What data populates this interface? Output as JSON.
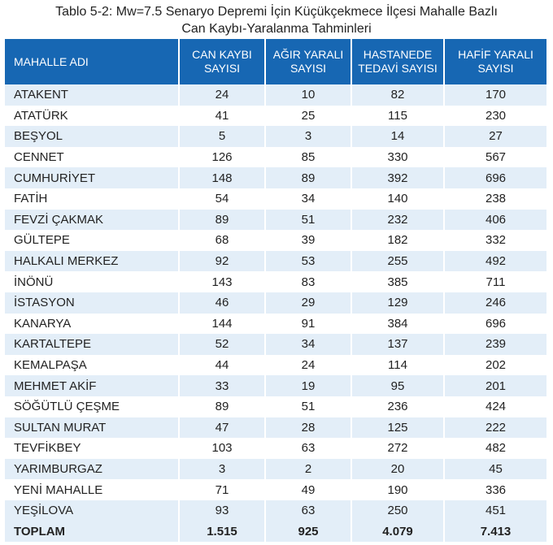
{
  "caption": {
    "line1": "Tablo 5-2: Mw=7.5 Senaryo Depremi İçin Küçükçekmece İlçesi Mahalle Bazlı",
    "line2": "Can Kaybı-Yaralanma Tahminleri"
  },
  "table": {
    "headers": [
      [
        "MAHALLE ADI"
      ],
      [
        "CAN KAYBI",
        "SAYISI"
      ],
      [
        "AĞIR YARALI",
        "SAYISI"
      ],
      [
        "HASTANEDE",
        "TEDAVİ SAYISI"
      ],
      [
        "HAFİF YARALI",
        "SAYISI"
      ]
    ],
    "rows": [
      [
        "ATAKENT",
        "24",
        "10",
        "82",
        "170"
      ],
      [
        "ATATÜRK",
        "41",
        "25",
        "115",
        "230"
      ],
      [
        "BEŞYOL",
        "5",
        "3",
        "14",
        "27"
      ],
      [
        "CENNET",
        "126",
        "85",
        "330",
        "567"
      ],
      [
        "CUMHURİYET",
        "148",
        "89",
        "392",
        "696"
      ],
      [
        "FATİH",
        "54",
        "34",
        "140",
        "238"
      ],
      [
        "FEVZİ ÇAKMAK",
        "89",
        "51",
        "232",
        "406"
      ],
      [
        "GÜLTEPE",
        "68",
        "39",
        "182",
        "332"
      ],
      [
        "HALKALI MERKEZ",
        "92",
        "53",
        "255",
        "492"
      ],
      [
        "İNÖNÜ",
        "143",
        "83",
        "385",
        "711"
      ],
      [
        "İSTASYON",
        "46",
        "29",
        "129",
        "246"
      ],
      [
        "KANARYA",
        "144",
        "91",
        "384",
        "696"
      ],
      [
        "KARTALTEPE",
        "52",
        "34",
        "137",
        "239"
      ],
      [
        "KEMALPAŞA",
        "44",
        "24",
        "114",
        "202"
      ],
      [
        "MEHMET AKİF",
        "33",
        "19",
        "95",
        "201"
      ],
      [
        "SÖĞÜTLÜ ÇEŞME",
        "89",
        "51",
        "236",
        "424"
      ],
      [
        "SULTAN MURAT",
        "47",
        "28",
        "125",
        "222"
      ],
      [
        "TEVFİKBEY",
        "103",
        "63",
        "272",
        "482"
      ],
      [
        "YARIMBURGAZ",
        "3",
        "2",
        "20",
        "45"
      ],
      [
        "YENİ MAHALLE",
        "71",
        "49",
        "190",
        "336"
      ],
      [
        "YEŞİLOVA",
        "93",
        "63",
        "250",
        "451"
      ]
    ],
    "total": [
      "TOPLAM",
      "1.515",
      "925",
      "4.079",
      "7.413"
    ]
  },
  "colors": {
    "header_bg": "#1767b3",
    "stripe_bg": "#e3eef8"
  }
}
